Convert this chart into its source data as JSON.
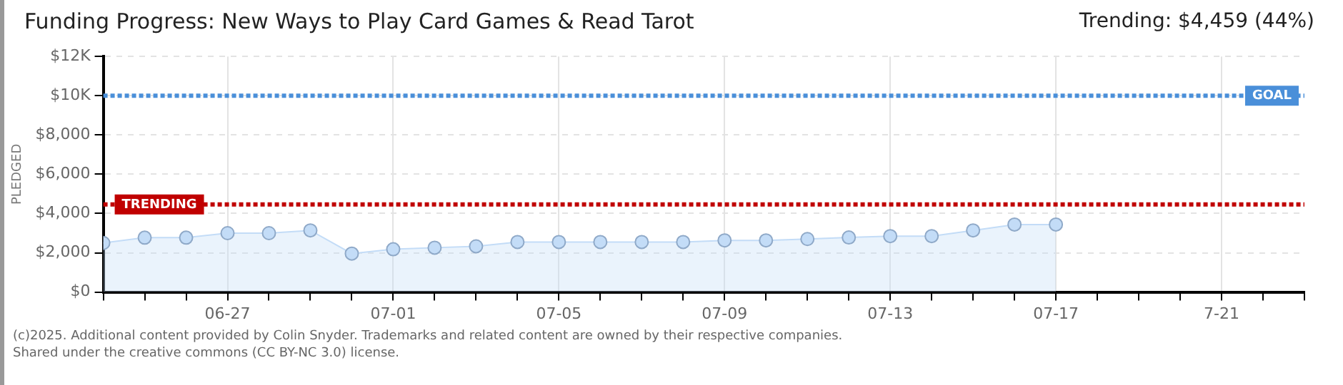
{
  "chart_data": {
    "type": "area",
    "title": "Funding Progress: New Ways to Play Card Games & Read Tarot",
    "ylabel": "PLEDGED",
    "annotations": [
      "Trending: $4,459 (44%)",
      "(c)2025. Additional content provided by Colin Snyder. Trademarks and related content are owned by their respective companies.",
      "Shared under the creative commons (CC BY-NC 3.0) license."
    ],
    "x": [
      "--06-24",
      "--06-25",
      "--06-26",
      "--06-27",
      "--06-28",
      "--06-29",
      "--06-30",
      "--07-01",
      "--07-02",
      "--07-03",
      "--07-04",
      "--07-05",
      "--07-06",
      "--07-07",
      "--07-08",
      "--07-09",
      "--07-10",
      "--07-11",
      "--07-12",
      "--07-13",
      "--07-14",
      "--07-15",
      "--07-16",
      "--07-17"
    ],
    "series": [
      {
        "color": "#c3dcf7",
        "values": [
          2500,
          2770,
          2770,
          3000,
          3000,
          3140,
          1960,
          2180,
          2260,
          2330,
          2550,
          2550,
          2550,
          2550,
          2550,
          2630,
          2630,
          2700,
          2780,
          2850,
          2850,
          3140,
          3440,
          3440
        ]
      }
    ],
    "xlim": [
      "--06-24",
      "--07-23"
    ],
    "xticks": [
      {
        "value": "--06-24",
        "label": null
      },
      {
        "value": "--06-25",
        "label": null
      },
      {
        "value": "--06-26",
        "label": null
      },
      {
        "value": "--06-27",
        "label": "06-27"
      },
      {
        "value": "--06-28",
        "label": null
      },
      {
        "value": "--06-29",
        "label": null
      },
      {
        "value": "--06-30",
        "label": null
      },
      {
        "value": "--07-01",
        "label": "07-01"
      },
      {
        "value": "--07-02",
        "label": null
      },
      {
        "value": "--07-03",
        "label": null
      },
      {
        "value": "--07-04",
        "label": null
      },
      {
        "value": "--07-05",
        "label": "07-05"
      },
      {
        "value": "--07-06",
        "label": null
      },
      {
        "value": "--07-07",
        "label": null
      },
      {
        "value": "--07-08",
        "label": null
      },
      {
        "value": "--07-09",
        "label": "07-09"
      },
      {
        "value": "--07-10",
        "label": null
      },
      {
        "value": "--07-11",
        "label": null
      },
      {
        "value": "--07-12",
        "label": null
      },
      {
        "value": "--07-13",
        "label": "07-13"
      },
      {
        "value": "--07-14",
        "label": null
      },
      {
        "value": "--07-15",
        "label": null
      },
      {
        "value": "--07-16",
        "label": null
      },
      {
        "value": "--07-17",
        "label": "07-17"
      },
      {
        "value": "--07-18",
        "label": null
      },
      {
        "value": "--07-19",
        "label": null
      },
      {
        "value": "--07-20",
        "label": null
      },
      {
        "value": "--07-21",
        "label": "7-21"
      },
      {
        "value": "--07-22",
        "label": null
      },
      {
        "value": "--07-23",
        "label": null
      }
    ],
    "ylim": [
      0,
      12000
    ],
    "yticks": [
      {
        "value": 0,
        "label": "$0"
      },
      {
        "value": 2000,
        "label": "$2,000"
      },
      {
        "value": 4000,
        "label": "$4,000"
      },
      {
        "value": 6000,
        "label": "$6,000"
      },
      {
        "value": 8000,
        "label": "$8,000"
      },
      {
        "value": 10000,
        "label": "$10K"
      },
      {
        "value": 12000,
        "label": "$12K"
      }
    ],
    "ref_lines": [
      {
        "axis": "y",
        "value": 10000,
        "label": "GOAL",
        "color": "#4a8fd9",
        "line_style": "dotted"
      },
      {
        "axis": "y",
        "value": 4459,
        "label": "TRENDING",
        "color": "#c00000",
        "line_style": "dotted"
      }
    ],
    "grid": true,
    "marker": "circle",
    "legend": false
  }
}
